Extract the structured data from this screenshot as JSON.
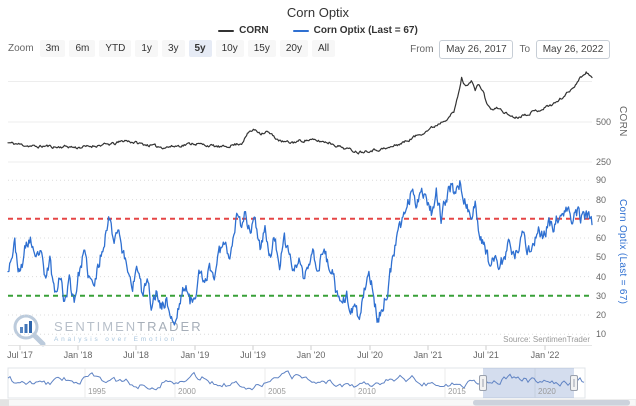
{
  "title": "Corn Optix",
  "legend": {
    "items": [
      {
        "label": "CORN",
        "color": "#333333"
      },
      {
        "label": "Corn Optix (Last = 67)",
        "color": "#2f70d1"
      }
    ]
  },
  "toolbar": {
    "zoom_label": "Zoom",
    "buttons": [
      {
        "label": "3m"
      },
      {
        "label": "6m"
      },
      {
        "label": "YTD"
      },
      {
        "label": "1y"
      },
      {
        "label": "3y"
      },
      {
        "label": "5y"
      },
      {
        "label": "10y"
      },
      {
        "label": "15y"
      },
      {
        "label": "20y"
      },
      {
        "label": "All"
      }
    ],
    "selected": "5y"
  },
  "range": {
    "from_label": "From",
    "from_value": "May 26, 2017",
    "to_label": "To",
    "to_value": "May 26, 2022"
  },
  "top_chart": {
    "axis_title": "CORN",
    "yticks": [
      "500",
      "250"
    ]
  },
  "bottom_chart": {
    "axis_title": "Corn Optix (Last = 67)",
    "yticks": [
      "90",
      "80",
      "70",
      "60",
      "50",
      "40",
      "30",
      "20",
      "10"
    ],
    "overbought_level": 70,
    "oversold_level": 30,
    "red_color": "#e54545",
    "green_color": "#38a038"
  },
  "x_axis": {
    "labels": [
      "Jul '17",
      "Jan '18",
      "Jul '18",
      "Jan '19",
      "Jul '19",
      "Jan '20",
      "Jul '20",
      "Jan '21",
      "Jul '21",
      "Jan '22"
    ]
  },
  "watermark": {
    "name_part1": "SENTIMEN",
    "name_part2": "TRADER",
    "tagline": "Analysis over Emotion"
  },
  "source": "Source: SentimenTrader",
  "navigator": {
    "years": [
      "1995",
      "2000",
      "2005",
      "2010",
      "2015",
      "2020"
    ],
    "selected_range": [
      "May 26, 2017",
      "May 26, 2022"
    ]
  },
  "chart_data": {
    "type": "line",
    "x_unit": "months since May 26, 2017",
    "x_range": [
      "May 26, 2017",
      "May 26, 2022"
    ],
    "price_axis": {
      "ticks": [
        250,
        500
      ],
      "range": [
        230,
        830
      ],
      "title": "CORN"
    },
    "optix_axis": {
      "ticks": [
        10,
        20,
        30,
        40,
        50,
        60,
        70,
        80,
        90
      ],
      "range": [
        5,
        95
      ],
      "title": "Corn Optix (Last = 67)",
      "thresholds": [
        {
          "value": 70,
          "color": "#e54545",
          "style": "dashed"
        },
        {
          "value": 30,
          "color": "#38a038",
          "style": "dashed"
        }
      ]
    },
    "series": [
      {
        "name": "CORN",
        "color": "#333333",
        "axis": "price",
        "points": [
          [
            0,
            370
          ],
          [
            1,
            362
          ],
          [
            2,
            352
          ],
          [
            3,
            345
          ],
          [
            4,
            350
          ],
          [
            5,
            342
          ],
          [
            6,
            348
          ],
          [
            7,
            340
          ],
          [
            8,
            345
          ],
          [
            9,
            352
          ],
          [
            10,
            358
          ],
          [
            11,
            365
          ],
          [
            12,
            385
          ],
          [
            13,
            372
          ],
          [
            14,
            360
          ],
          [
            15,
            350
          ],
          [
            16,
            342
          ],
          [
            17,
            348
          ],
          [
            18,
            355
          ],
          [
            19,
            368
          ],
          [
            20,
            358
          ],
          [
            21,
            350
          ],
          [
            22,
            342
          ],
          [
            23,
            355
          ],
          [
            24,
            368
          ],
          [
            24.8,
            440
          ],
          [
            25.4,
            452
          ],
          [
            26,
            430
          ],
          [
            26.6,
            440
          ],
          [
            27.4,
            405
          ],
          [
            28,
            378
          ],
          [
            29,
            370
          ],
          [
            30,
            382
          ],
          [
            31,
            388
          ],
          [
            32,
            380
          ],
          [
            33,
            372
          ],
          [
            34,
            348
          ],
          [
            35,
            330
          ],
          [
            36,
            312
          ],
          [
            37,
            322
          ],
          [
            38,
            328
          ],
          [
            39,
            335
          ],
          [
            40,
            358
          ],
          [
            41,
            382
          ],
          [
            42,
            415
          ],
          [
            43,
            445
          ],
          [
            44,
            480
          ],
          [
            45,
            520
          ],
          [
            45.8,
            560
          ],
          [
            46.3,
            680
          ],
          [
            46.6,
            775
          ],
          [
            47,
            720
          ],
          [
            47.3,
            745
          ],
          [
            47.6,
            760
          ],
          [
            48,
            700
          ],
          [
            48.4,
            735
          ],
          [
            48.8,
            690
          ],
          [
            49.3,
            600
          ],
          [
            49.8,
            575
          ],
          [
            50.4,
            588
          ],
          [
            51,
            560
          ],
          [
            51.6,
            540
          ],
          [
            52.2,
            528
          ],
          [
            53,
            545
          ],
          [
            54,
            565
          ],
          [
            54.8,
            580
          ],
          [
            55.5,
            600
          ],
          [
            56.2,
            618
          ],
          [
            57,
            655
          ],
          [
            57.8,
            700
          ],
          [
            58.4,
            745
          ],
          [
            59,
            790
          ],
          [
            59.4,
            812
          ],
          [
            59.7,
            800
          ],
          [
            60,
            778
          ]
        ]
      },
      {
        "name": "Corn Optix",
        "color": "#2f70d1",
        "axis": "optix",
        "last": 67,
        "points": [
          [
            0,
            45
          ],
          [
            0.7,
            57
          ],
          [
            1.2,
            40
          ],
          [
            1.8,
            55
          ],
          [
            2.3,
            60
          ],
          [
            2.8,
            46
          ],
          [
            3.3,
            54
          ],
          [
            3.8,
            38
          ],
          [
            4.3,
            48
          ],
          [
            4.8,
            32
          ],
          [
            5.3,
            42
          ],
          [
            5.8,
            27
          ],
          [
            6.3,
            38
          ],
          [
            6.8,
            28
          ],
          [
            7.3,
            42
          ],
          [
            7.8,
            52
          ],
          [
            8.3,
            40
          ],
          [
            8.8,
            34
          ],
          [
            9.4,
            48
          ],
          [
            10,
            62
          ],
          [
            10.5,
            72
          ],
          [
            10.9,
            58
          ],
          [
            11.3,
            68
          ],
          [
            11.8,
            52
          ],
          [
            12.3,
            44
          ],
          [
            12.8,
            36
          ],
          [
            13.3,
            44
          ],
          [
            13.8,
            30
          ],
          [
            14.3,
            38
          ],
          [
            14.8,
            24
          ],
          [
            15.3,
            33
          ],
          [
            15.8,
            24
          ],
          [
            16.3,
            28
          ],
          [
            16.8,
            18
          ],
          [
            17.2,
            15
          ],
          [
            17.7,
            28
          ],
          [
            18.2,
            36
          ],
          [
            18.7,
            26
          ],
          [
            19.2,
            32
          ],
          [
            19.7,
            42
          ],
          [
            20.2,
            34
          ],
          [
            20.7,
            46
          ],
          [
            21.2,
            40
          ],
          [
            21.7,
            52
          ],
          [
            22.2,
            60
          ],
          [
            22.7,
            50
          ],
          [
            23.2,
            64
          ],
          [
            23.6,
            73
          ],
          [
            24,
            66
          ],
          [
            24.4,
            74
          ],
          [
            24.9,
            62
          ],
          [
            25.4,
            71
          ],
          [
            25.9,
            56
          ],
          [
            26.4,
            66
          ],
          [
            26.9,
            50
          ],
          [
            27.4,
            60
          ],
          [
            27.9,
            46
          ],
          [
            28.4,
            58
          ],
          [
            28.9,
            52
          ],
          [
            29.4,
            42
          ],
          [
            29.9,
            50
          ],
          [
            30.4,
            38
          ],
          [
            30.9,
            46
          ],
          [
            31.4,
            52
          ],
          [
            31.9,
            44
          ],
          [
            32.4,
            54
          ],
          [
            32.9,
            47
          ],
          [
            33.4,
            40
          ],
          [
            33.9,
            28
          ],
          [
            34.3,
            22
          ],
          [
            34.8,
            32
          ],
          [
            35.2,
            18
          ],
          [
            35.7,
            26
          ],
          [
            36.1,
            15
          ],
          [
            36.6,
            32
          ],
          [
            37,
            44
          ],
          [
            37.5,
            32
          ],
          [
            38,
            17
          ],
          [
            38.5,
            24
          ],
          [
            39,
            34
          ],
          [
            39.5,
            48
          ],
          [
            40,
            60
          ],
          [
            40.5,
            70
          ],
          [
            41,
            77
          ],
          [
            41.5,
            84
          ],
          [
            42,
            79
          ],
          [
            42.5,
            86
          ],
          [
            43,
            81
          ],
          [
            43.5,
            74
          ],
          [
            44,
            84
          ],
          [
            44.5,
            71
          ],
          [
            45,
            79
          ],
          [
            45.5,
            87
          ],
          [
            46,
            84
          ],
          [
            46.5,
            89
          ],
          [
            47,
            79
          ],
          [
            47.5,
            69
          ],
          [
            48,
            77
          ],
          [
            48.5,
            62
          ],
          [
            49,
            54
          ],
          [
            49.5,
            47
          ],
          [
            50,
            52
          ],
          [
            50.5,
            45
          ],
          [
            51,
            50
          ],
          [
            51.5,
            57
          ],
          [
            52,
            49
          ],
          [
            52.5,
            56
          ],
          [
            53,
            61
          ],
          [
            53.5,
            53
          ],
          [
            54,
            59
          ],
          [
            54.5,
            64
          ],
          [
            55,
            60
          ],
          [
            55.5,
            68
          ],
          [
            56,
            64
          ],
          [
            56.5,
            71
          ],
          [
            57,
            69
          ],
          [
            57.5,
            74
          ],
          [
            58,
            71
          ],
          [
            58.5,
            74
          ],
          [
            59,
            70
          ],
          [
            59.5,
            72
          ],
          [
            60,
            67
          ]
        ]
      }
    ]
  }
}
